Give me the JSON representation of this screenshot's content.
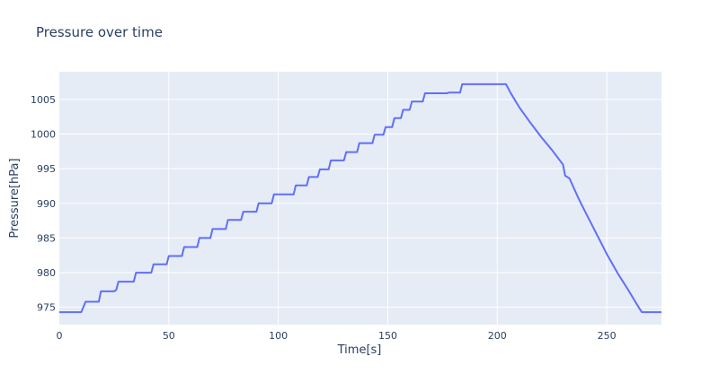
{
  "chart_data": {
    "type": "line",
    "title": "Pressure over time",
    "xlabel": "Time[s]",
    "ylabel": "Pressure[hPa]",
    "xlim": [
      0,
      275
    ],
    "ylim": [
      972.5,
      1009
    ],
    "x_ticks": [
      0,
      50,
      100,
      150,
      200,
      250
    ],
    "y_ticks": [
      975,
      980,
      985,
      990,
      995,
      1000,
      1005
    ],
    "grid": true,
    "legend": "none",
    "colors": {
      "line": "#636efa",
      "plot_bg": "#e5ecf6",
      "grid": "#ffffff",
      "text": "#2a3f5f"
    },
    "series": [
      {
        "x": [
          0,
          10,
          12,
          18,
          19,
          25,
          26,
          27,
          28,
          34,
          35,
          42,
          43,
          49,
          50,
          56,
          57,
          63,
          64,
          69,
          70,
          76,
          77,
          83,
          84,
          90,
          91,
          97,
          98,
          107,
          108,
          113,
          114,
          118,
          119,
          123,
          124,
          130,
          131,
          136,
          137,
          143,
          144,
          148,
          149,
          152,
          153,
          156,
          157,
          160,
          161,
          166,
          167,
          174,
          175,
          177,
          178,
          183,
          184,
          186,
          204,
          206,
          210,
          215,
          220,
          225,
          230,
          231,
          233,
          237,
          240,
          245,
          250,
          255,
          260,
          264,
          265,
          266,
          275
        ],
        "y": [
          974.3,
          974.3,
          975.8,
          975.8,
          977.3,
          977.3,
          977.5,
          978.7,
          978.7,
          978.7,
          980.0,
          980.0,
          981.2,
          981.2,
          982.4,
          982.4,
          983.7,
          983.7,
          985.0,
          985.0,
          986.3,
          986.3,
          987.6,
          987.6,
          988.8,
          988.8,
          990.0,
          990.0,
          991.3,
          991.3,
          992.6,
          992.6,
          993.8,
          993.8,
          994.9,
          994.9,
          996.2,
          996.2,
          997.4,
          997.4,
          998.7,
          998.7,
          999.9,
          999.9,
          1001.0,
          1001.0,
          1002.3,
          1002.3,
          1003.5,
          1003.5,
          1004.7,
          1004.7,
          1005.9,
          1005.9,
          1005.9,
          1005.9,
          1006.0,
          1006.0,
          1007.2,
          1007.2,
          1007.2,
          1006.0,
          1003.9,
          1001.7,
          999.6,
          997.7,
          995.6,
          994.0,
          993.6,
          990.8,
          988.9,
          985.8,
          982.7,
          979.9,
          977.4,
          975.3,
          974.8,
          974.3,
          974.3
        ]
      }
    ]
  }
}
